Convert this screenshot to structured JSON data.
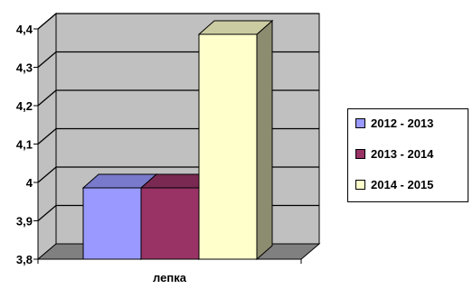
{
  "chart_data": {
    "type": "bar",
    "categories": [
      "лепка"
    ],
    "series": [
      {
        "name": "2012 - 2013",
        "values": [
          4.0
        ],
        "color": "#9999ff"
      },
      {
        "name": "2013 - 2014",
        "values": [
          4.0
        ],
        "color": "#993366"
      },
      {
        "name": "2014 - 2015",
        "values": [
          4.4
        ],
        "color": "#ffffcc"
      }
    ],
    "ylim": [
      3.8,
      4.4
    ],
    "yticks": [
      "3,8",
      "3,9",
      "4",
      "4,1",
      "4,2",
      "4,3",
      "4,4"
    ],
    "grid": true,
    "three_d": true,
    "wall_color": "#c0c0c0",
    "floor_color": "#808080",
    "legend_position": "right"
  }
}
